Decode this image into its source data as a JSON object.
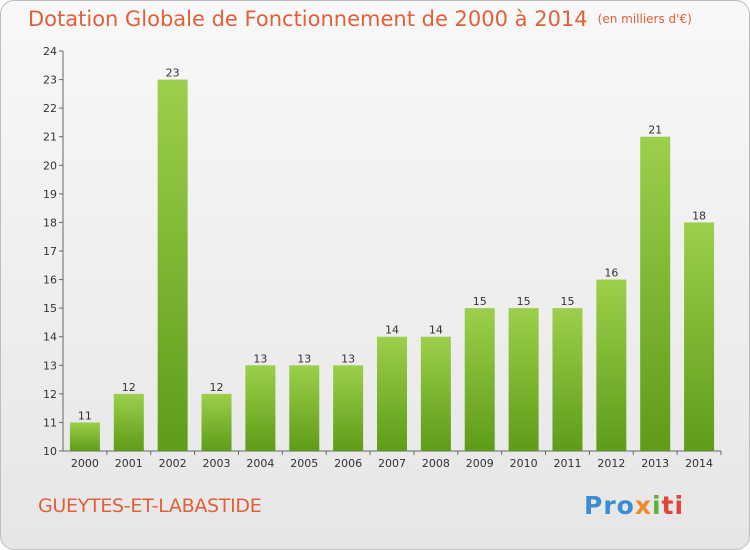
{
  "chart_data": {
    "type": "bar",
    "title": "Dotation Globale de Fonctionnement de 2000 à 2014",
    "unit_note": "(en milliers d'€)",
    "categories": [
      "2000",
      "2001",
      "2002",
      "2003",
      "2004",
      "2005",
      "2006",
      "2007",
      "2008",
      "2009",
      "2010",
      "2011",
      "2012",
      "2013",
      "2014"
    ],
    "values": [
      11,
      12,
      23,
      12,
      13,
      13,
      13,
      14,
      14,
      15,
      15,
      15,
      16,
      21,
      18
    ],
    "ylim": [
      10,
      24
    ],
    "yticks": [
      10,
      11,
      12,
      13,
      14,
      15,
      16,
      17,
      18,
      19,
      20,
      21,
      22,
      23,
      24
    ],
    "xlabel": "",
    "ylabel": "",
    "grid": false,
    "colors": {
      "bar_top": "#9ccf4c",
      "bar_bottom": "#5e9c17",
      "title": "#e0603a"
    }
  },
  "footer": {
    "commune": "GUEYTES-ET-LABASTIDE",
    "logo": [
      "Pro",
      "x",
      "i",
      "ti"
    ]
  }
}
